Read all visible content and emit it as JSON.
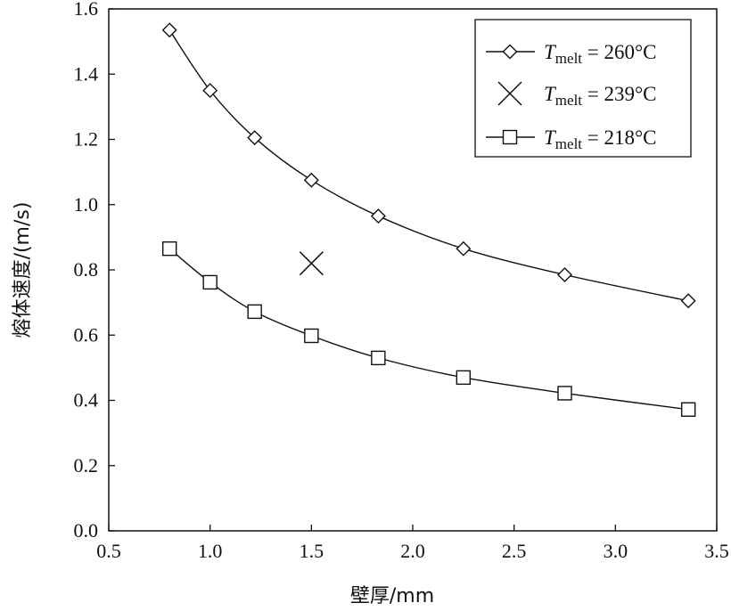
{
  "chart_data": {
    "type": "line",
    "xlabel": "壁厚/mm",
    "ylabel": "熔体速度/(m/s)",
    "xlim": [
      0.5,
      3.5
    ],
    "ylim": [
      0.0,
      1.6
    ],
    "xticks": [
      "0.5",
      "1.0",
      "1.5",
      "2.0",
      "2.5",
      "3.0",
      "3.5"
    ],
    "yticks": [
      "0.0",
      "0.2",
      "0.4",
      "0.6",
      "0.8",
      "1.0",
      "1.2",
      "1.4",
      "1.6"
    ],
    "grid": false,
    "legend_position": "top-right",
    "series": [
      {
        "name": "T_melt = 260°C",
        "legend_var": "T",
        "legend_sub": "melt",
        "legend_rest": " = 260°C",
        "marker": "diamond",
        "line": true,
        "x": [
          0.8,
          1.0,
          1.22,
          1.5,
          1.83,
          2.25,
          2.75,
          3.36
        ],
        "y": [
          1.535,
          1.35,
          1.205,
          1.075,
          0.965,
          0.865,
          0.785,
          0.705
        ]
      },
      {
        "name": "T_melt = 239°C",
        "legend_var": "T",
        "legend_sub": "melt",
        "legend_rest": " = 239°C",
        "marker": "cross",
        "line": false,
        "x": [
          1.5
        ],
        "y": [
          0.82
        ]
      },
      {
        "name": "T_melt = 218°C",
        "legend_var": "T",
        "legend_sub": "melt",
        "legend_rest": " = 218°C",
        "marker": "square",
        "line": true,
        "x": [
          0.8,
          1.0,
          1.22,
          1.5,
          1.83,
          2.25,
          2.75,
          3.36
        ],
        "y": [
          0.865,
          0.762,
          0.672,
          0.598,
          0.53,
          0.47,
          0.422,
          0.372
        ]
      }
    ]
  }
}
